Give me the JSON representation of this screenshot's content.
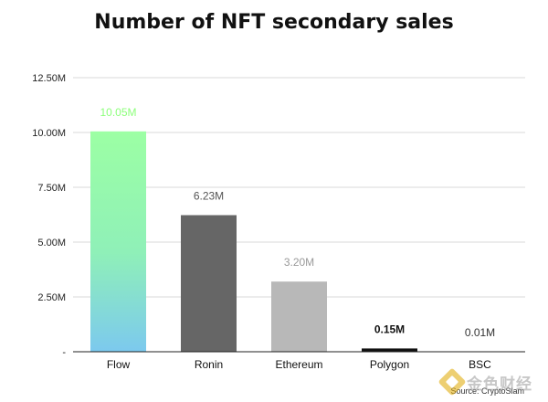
{
  "chart_data": {
    "type": "bar",
    "title": "Number of NFT secondary sales",
    "xlabel": "",
    "ylabel": "",
    "categories": [
      "Flow",
      "Ronin",
      "Ethereum",
      "Polygon",
      "BSC"
    ],
    "values": [
      10.05,
      6.23,
      3.2,
      0.15,
      0.01
    ],
    "value_labels": [
      "10.05M",
      "6.23M",
      "3.20M",
      "0.15M",
      "0.01M"
    ],
    "y_ticks": [
      0,
      2.5,
      5,
      7.5,
      10,
      12.5
    ],
    "y_tick_labels": [
      "-",
      "2.50M",
      "5.00M",
      "7.50M",
      "10.00M",
      "12.50M"
    ],
    "ylim": [
      0,
      12.5
    ],
    "grid": true,
    "legend": "none",
    "bar_colors": [
      "gradient:#9cffa4-#7cc9ee",
      "#666666",
      "#b8b8b8",
      "#111111",
      "#111111"
    ],
    "label_colors": [
      "#8cff7a",
      "#555555",
      "#9a9a9a",
      "#111111",
      "#333333"
    ],
    "label_bold": [
      false,
      false,
      false,
      true,
      false
    ]
  },
  "source": "Source: CryptoSlam",
  "watermark": {
    "logo_icon": "diamond-logo-icon",
    "text": "金色财经"
  }
}
